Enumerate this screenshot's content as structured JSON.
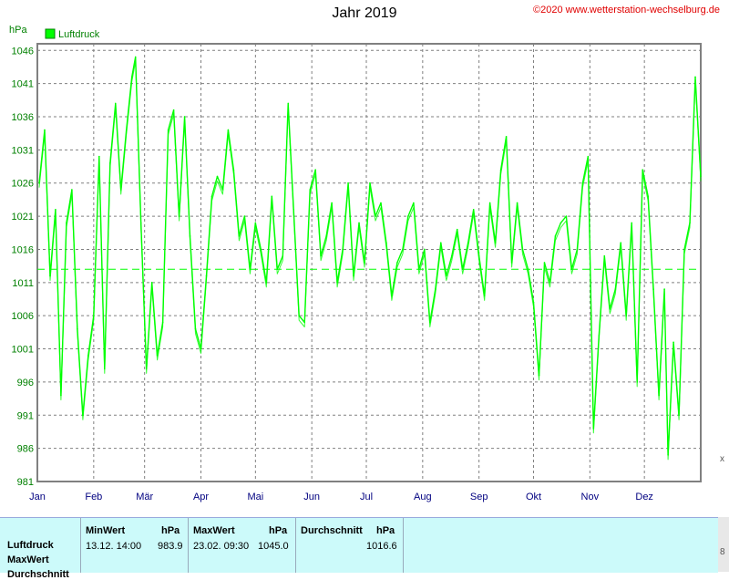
{
  "header": {
    "title": "Jahr 2019",
    "copyright": "©2020 www.wetterstation-wechselburg.de"
  },
  "chart_data": {
    "type": "line",
    "title": "Jahr 2019",
    "ylabel": "hPa",
    "ylim": [
      981,
      1047
    ],
    "yticks": [
      981,
      986,
      991,
      996,
      1001,
      1006,
      1011,
      1016,
      1021,
      1026,
      1031,
      1036,
      1041,
      1046
    ],
    "xticks": [
      "Jan",
      "Feb",
      "Mär",
      "Apr",
      "Mai",
      "Jun",
      "Jul",
      "Aug",
      "Sep",
      "Okt",
      "Nov",
      "Dez"
    ],
    "xlim_days": [
      0,
      365
    ],
    "grid": true,
    "average_line": 1013,
    "series": [
      {
        "name": "Luftdruck",
        "color": "#00ff00",
        "x": [
          1,
          4,
          7,
          10,
          13,
          16,
          19,
          22,
          25,
          28,
          31,
          34,
          37,
          40,
          43,
          46,
          49,
          52,
          54,
          57,
          60,
          63,
          66,
          69,
          72,
          75,
          78,
          81,
          84,
          87,
          90,
          93,
          96,
          99,
          102,
          105,
          108,
          111,
          114,
          117,
          120,
          123,
          126,
          129,
          132,
          135,
          138,
          141,
          144,
          147,
          150,
          153,
          156,
          159,
          162,
          165,
          168,
          171,
          174,
          177,
          180,
          183,
          186,
          189,
          192,
          195,
          198,
          201,
          204,
          207,
          210,
          213,
          216,
          219,
          222,
          225,
          228,
          231,
          234,
          237,
          240,
          243,
          246,
          249,
          252,
          255,
          258,
          261,
          264,
          267,
          270,
          273,
          276,
          279,
          282,
          285,
          288,
          291,
          294,
          297,
          300,
          303,
          306,
          309,
          312,
          315,
          318,
          321,
          324,
          327,
          330,
          333,
          336,
          339,
          342,
          345,
          347,
          350,
          353,
          356,
          359,
          362,
          365
        ],
        "values": [
          1026,
          1034,
          1012,
          1022,
          994,
          1020,
          1025,
          1004,
          991,
          1000,
          1006,
          1030,
          998,
          1029,
          1038,
          1025,
          1034,
          1042,
          1045,
          1020,
          998,
          1011,
          1000,
          1005,
          1034,
          1037,
          1021,
          1036,
          1018,
          1004,
          1001,
          1012,
          1024,
          1027,
          1025,
          1034,
          1028,
          1018,
          1021,
          1013,
          1020,
          1016,
          1011,
          1024,
          1013,
          1015,
          1038,
          1022,
          1006,
          1005,
          1025,
          1028,
          1015,
          1018,
          1023,
          1011,
          1016,
          1026,
          1012,
          1020,
          1014,
          1026,
          1021,
          1023,
          1017,
          1009,
          1014,
          1016,
          1021,
          1023,
          1013,
          1016,
          1005,
          1010,
          1017,
          1012,
          1015,
          1019,
          1013,
          1017,
          1022,
          1015,
          1009,
          1023,
          1017,
          1028,
          1033,
          1014,
          1023,
          1016,
          1013,
          1008,
          997,
          1014,
          1011,
          1018,
          1020,
          1021,
          1013,
          1016,
          1026,
          1030,
          989,
          1003,
          1015,
          1007,
          1010,
          1017,
          1006,
          1020,
          996,
          1028,
          1024,
          1010,
          994,
          1010,
          985,
          1002,
          991,
          1016,
          1020,
          1042,
          1027
        ]
      }
    ]
  },
  "stats": {
    "col1_header": "MinWert",
    "col1_unit": "hPa",
    "col1_date": "13.12.  14:00",
    "col1_value": "983.9",
    "col2_header": "MaxWert",
    "col2_unit": "hPa",
    "col2_date": "23.02.  09:30",
    "col2_value": "1045.0",
    "col3_header": "Durchschnitt",
    "col3_unit": "hPa",
    "col3_value": "1016.6",
    "row1": "Luftdruck",
    "row2": "MaxWert",
    "row3": "Durchschnitt"
  },
  "edge": {
    "x_mark": "x",
    "num_mark": "8"
  },
  "colors": {
    "line": "#00ff00",
    "grid": "#808080",
    "panel": "#ccfafa",
    "copyright": "#e00000"
  }
}
